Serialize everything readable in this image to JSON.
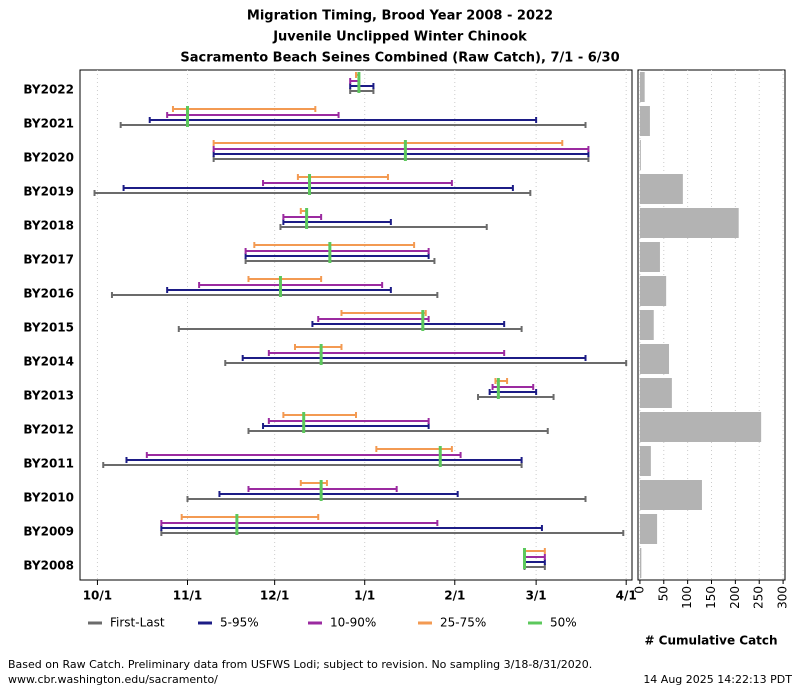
{
  "chart_data": [
    {
      "type": "range",
      "title": [
        "Migration Timing, Brood Year 2008 - 2022",
        "Juvenile Unclipped Winter Chinook",
        "Sacramento Beach Seines Combined (Raw Catch), 7/1 - 6/30"
      ],
      "categories": [
        "BY2022",
        "BY2021",
        "BY2020",
        "BY2019",
        "BY2018",
        "BY2017",
        "BY2016",
        "BY2015",
        "BY2014",
        "BY2013",
        "BY2012",
        "BY2011",
        "BY2010",
        "BY2009",
        "BY2008"
      ],
      "series": [
        {
          "name": "First-Last",
          "color": "#6b6b6b",
          "values": [
            [
              87,
              95
            ],
            [
              8,
              168
            ],
            [
              40,
              169
            ],
            [
              -1,
              149
            ],
            [
              63,
              134
            ],
            [
              51,
              116
            ],
            [
              5,
              117
            ],
            [
              28,
              146
            ],
            [
              44,
              182
            ],
            [
              131,
              157
            ],
            [
              52,
              155
            ],
            [
              2,
              146
            ],
            [
              31,
              168
            ],
            [
              22,
              181
            ],
            [
              147,
              154
            ]
          ]
        },
        {
          "name": "5-95%",
          "color": "#1c1c86",
          "values": [
            [
              87,
              95
            ],
            [
              18,
              151
            ],
            [
              40,
              169
            ],
            [
              9,
              143
            ],
            [
              64,
              101
            ],
            [
              51,
              114
            ],
            [
              24,
              101
            ],
            [
              74,
              140
            ],
            [
              50,
              168
            ],
            [
              135,
              151
            ],
            [
              57,
              114
            ],
            [
              10,
              146
            ],
            [
              42,
              124
            ],
            [
              22,
              153
            ],
            [
              147,
              154
            ]
          ]
        },
        {
          "name": "10-90%",
          "color": "#9b2aa0",
          "values": [
            [
              87,
              90
            ],
            [
              24,
              83
            ],
            [
              40,
              169
            ],
            [
              57,
              122
            ],
            [
              64,
              77
            ],
            [
              51,
              114
            ],
            [
              35,
              98
            ],
            [
              76,
              114
            ],
            [
              59,
              140
            ],
            [
              136,
              150
            ],
            [
              59,
              114
            ],
            [
              17,
              125
            ],
            [
              52,
              103
            ],
            [
              22,
              117
            ],
            [
              147,
              154
            ]
          ]
        },
        {
          "name": "25-75%",
          "color": "#f39a52",
          "values": [
            [
              89,
              90
            ],
            [
              26,
              75
            ],
            [
              40,
              160
            ],
            [
              69,
              100
            ],
            [
              70,
              72
            ],
            [
              54,
              109
            ],
            [
              52,
              77
            ],
            [
              84,
              113
            ],
            [
              68,
              84
            ],
            [
              137,
              141
            ],
            [
              64,
              89
            ],
            [
              96,
              122
            ],
            [
              70,
              79
            ],
            [
              29,
              76
            ],
            [
              147,
              154
            ]
          ]
        },
        {
          "name": "50%",
          "color": "#5cc85c",
          "values": [
            90,
            31,
            106,
            73,
            72,
            80,
            63,
            112,
            77,
            138,
            71,
            118,
            77,
            48,
            147
          ]
        }
      ],
      "xlim": [
        -6,
        184
      ],
      "xticks": [
        {
          "value": 0,
          "label": "10/1"
        },
        {
          "value": 31,
          "label": "11/1"
        },
        {
          "value": 61,
          "label": "12/1"
        },
        {
          "value": 92,
          "label": "1/1"
        },
        {
          "value": 123,
          "label": "2/1"
        },
        {
          "value": 151,
          "label": "3/1"
        },
        {
          "value": 182,
          "label": "4/1"
        }
      ],
      "grid": true
    },
    {
      "type": "bar",
      "xlabel": "# Cumulative Catch",
      "color": "#b3b3b3",
      "values": [
        10,
        21,
        2,
        90,
        207,
        42,
        55,
        29,
        61,
        67,
        254,
        23,
        130,
        36,
        3
      ],
      "xlim": [
        -4,
        304
      ],
      "xticks": [
        0,
        50,
        100,
        150,
        200,
        250,
        300
      ],
      "grid": true
    }
  ],
  "notes": [
    "Based on Raw Catch. Preliminary data from USFWS Lodi; subject to revision. No sampling 3/18-8/31/2020.",
    "www.cbr.washington.edu/sacramento/"
  ],
  "timestamp": "14 Aug 2025 14:22:13 PDT"
}
